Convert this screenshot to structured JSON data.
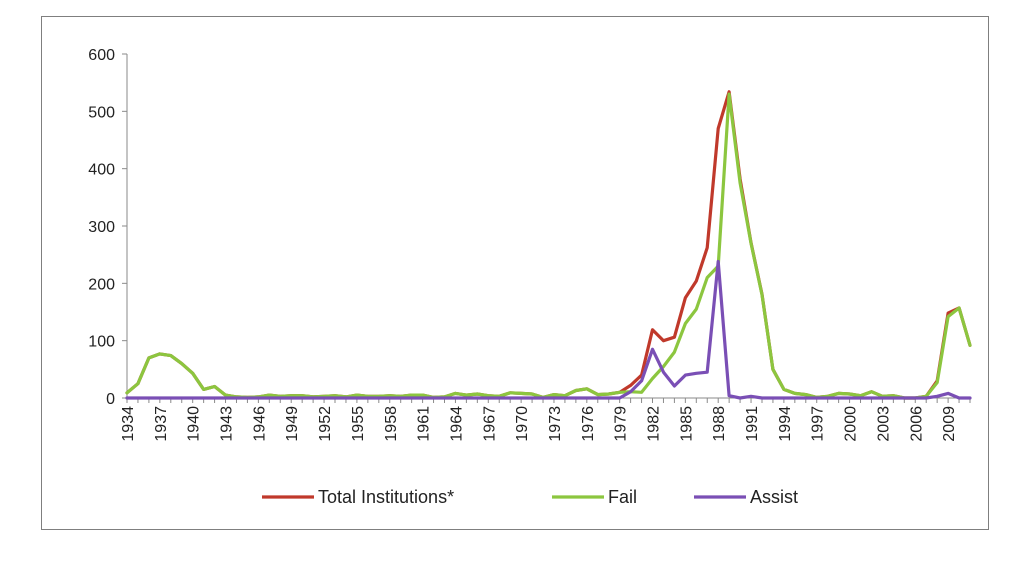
{
  "chart_data": {
    "type": "line",
    "title": "",
    "xlabel": "",
    "ylabel": "",
    "ylim": [
      0,
      600
    ],
    "yticks": [
      0,
      100,
      200,
      300,
      400,
      500,
      600
    ],
    "xlim": [
      1934,
      2011
    ],
    "xticks": [
      1934,
      1937,
      1940,
      1943,
      1946,
      1949,
      1952,
      1955,
      1958,
      1961,
      1964,
      1967,
      1970,
      1973,
      1976,
      1979,
      1982,
      1985,
      1988,
      1991,
      1994,
      1997,
      2000,
      2003,
      2006,
      2009
    ],
    "grid": false,
    "legend": "bottom",
    "series": [
      {
        "name": "Total Institutions*",
        "color": "#c0392b",
        "x": [
          1934,
          1935,
          1936,
          1937,
          1938,
          1939,
          1940,
          1941,
          1942,
          1943,
          1944,
          1945,
          1946,
          1947,
          1948,
          1949,
          1950,
          1951,
          1952,
          1953,
          1954,
          1955,
          1956,
          1957,
          1958,
          1959,
          1960,
          1961,
          1962,
          1963,
          1964,
          1965,
          1966,
          1967,
          1968,
          1969,
          1970,
          1971,
          1972,
          1973,
          1974,
          1975,
          1976,
          1977,
          1978,
          1979,
          1980,
          1981,
          1982,
          1983,
          1984,
          1985,
          1986,
          1987,
          1988,
          1989,
          1990,
          1991,
          1992,
          1993,
          1994,
          1995,
          1996,
          1997,
          1998,
          1999,
          2000,
          2001,
          2002,
          2003,
          2004,
          2005,
          2006,
          2007,
          2008,
          2009,
          2010,
          2011
        ],
        "y": [
          9,
          25,
          70,
          77,
          74,
          60,
          43,
          15,
          20,
          5,
          2,
          1,
          2,
          5,
          3,
          4,
          4,
          2,
          3,
          4,
          2,
          5,
          3,
          3,
          4,
          3,
          5,
          5,
          1,
          2,
          8,
          5,
          7,
          4,
          3,
          9,
          8,
          7,
          1,
          6,
          4,
          13,
          16,
          6,
          7,
          10,
          22,
          40,
          119,
          100,
          106,
          175,
          204,
          262,
          470,
          534,
          382,
          271,
          181,
          50,
          15,
          8,
          6,
          1,
          3,
          8,
          7,
          4,
          11,
          3,
          4,
          0,
          0,
          3,
          30,
          148,
          157,
          92
        ]
      },
      {
        "name": "Fail",
        "color": "#8cc63f",
        "x": [
          1934,
          1935,
          1936,
          1937,
          1938,
          1939,
          1940,
          1941,
          1942,
          1943,
          1944,
          1945,
          1946,
          1947,
          1948,
          1949,
          1950,
          1951,
          1952,
          1953,
          1954,
          1955,
          1956,
          1957,
          1958,
          1959,
          1960,
          1961,
          1962,
          1963,
          1964,
          1965,
          1966,
          1967,
          1968,
          1969,
          1970,
          1971,
          1972,
          1973,
          1974,
          1975,
          1976,
          1977,
          1978,
          1979,
          1980,
          1981,
          1982,
          1983,
          1984,
          1985,
          1986,
          1987,
          1988,
          1989,
          1990,
          1991,
          1992,
          1993,
          1994,
          1995,
          1996,
          1997,
          1998,
          1999,
          2000,
          2001,
          2002,
          2003,
          2004,
          2005,
          2006,
          2007,
          2008,
          2009,
          2010,
          2011
        ],
        "y": [
          9,
          25,
          70,
          77,
          74,
          60,
          43,
          15,
          20,
          5,
          2,
          1,
          2,
          5,
          3,
          4,
          4,
          2,
          3,
          4,
          2,
          5,
          3,
          3,
          4,
          3,
          5,
          5,
          1,
          2,
          8,
          5,
          7,
          4,
          3,
          9,
          8,
          7,
          1,
          6,
          4,
          13,
          16,
          6,
          7,
          10,
          11,
          10,
          34,
          55,
          80,
          130,
          155,
          210,
          230,
          530,
          375,
          270,
          180,
          50,
          15,
          8,
          6,
          1,
          3,
          8,
          7,
          4,
          11,
          3,
          4,
          0,
          0,
          3,
          27,
          142,
          157,
          92
        ]
      },
      {
        "name": "Assist",
        "color": "#7a4fb5",
        "x": [
          1934,
          1935,
          1936,
          1937,
          1938,
          1939,
          1940,
          1941,
          1942,
          1943,
          1944,
          1945,
          1946,
          1947,
          1948,
          1949,
          1950,
          1951,
          1952,
          1953,
          1954,
          1955,
          1956,
          1957,
          1958,
          1959,
          1960,
          1961,
          1962,
          1963,
          1964,
          1965,
          1966,
          1967,
          1968,
          1969,
          1970,
          1971,
          1972,
          1973,
          1974,
          1975,
          1976,
          1977,
          1978,
          1979,
          1980,
          1981,
          1982,
          1983,
          1984,
          1985,
          1986,
          1987,
          1988,
          1989,
          1990,
          1991,
          1992,
          1993,
          1994,
          1995,
          1996,
          1997,
          1998,
          1999,
          2000,
          2001,
          2002,
          2003,
          2004,
          2005,
          2006,
          2007,
          2008,
          2009,
          2010,
          2011
        ],
        "y": [
          0,
          0,
          0,
          0,
          0,
          0,
          0,
          0,
          0,
          0,
          0,
          0,
          0,
          0,
          0,
          0,
          0,
          0,
          0,
          0,
          0,
          0,
          0,
          0,
          0,
          0,
          0,
          0,
          0,
          0,
          0,
          0,
          0,
          0,
          0,
          0,
          0,
          0,
          0,
          0,
          0,
          0,
          0,
          0,
          0,
          0,
          11,
          30,
          85,
          45,
          21,
          40,
          43,
          45,
          238,
          4,
          0,
          3,
          0,
          0,
          0,
          0,
          0,
          0,
          0,
          0,
          0,
          0,
          0,
          0,
          0,
          0,
          0,
          0,
          3,
          8,
          0,
          0
        ]
      }
    ]
  }
}
